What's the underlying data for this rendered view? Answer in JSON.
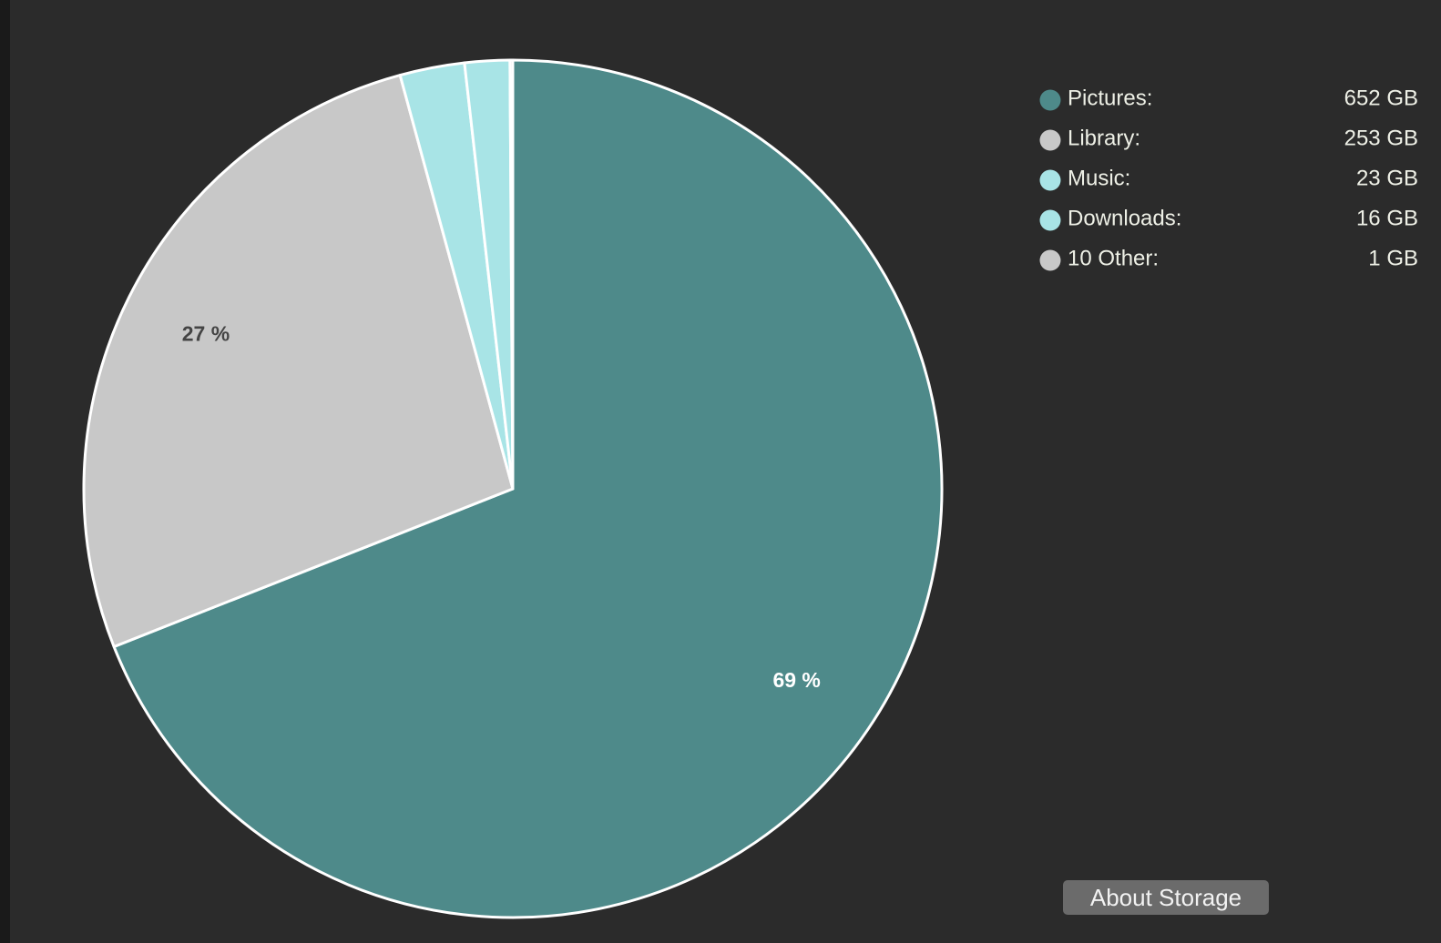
{
  "chart_data": {
    "type": "pie",
    "categories": [
      "Pictures:",
      "Library:",
      "Music:",
      "Downloads:",
      "10 Other:"
    ],
    "values": [
      652,
      253,
      23,
      16,
      1
    ],
    "value_labels": [
      "652 GB",
      "253 GB",
      "23 GB",
      "16 GB",
      "1 GB"
    ],
    "colors": [
      "#4e8a8a",
      "#c8c8c8",
      "#a8e4e6",
      "#a8e4e6",
      "#c8c8c8"
    ],
    "percent_labels": [
      {
        "value": 69,
        "label": "69 %"
      },
      {
        "value": 27,
        "label": "27 %"
      }
    ]
  },
  "button": "About Storage"
}
